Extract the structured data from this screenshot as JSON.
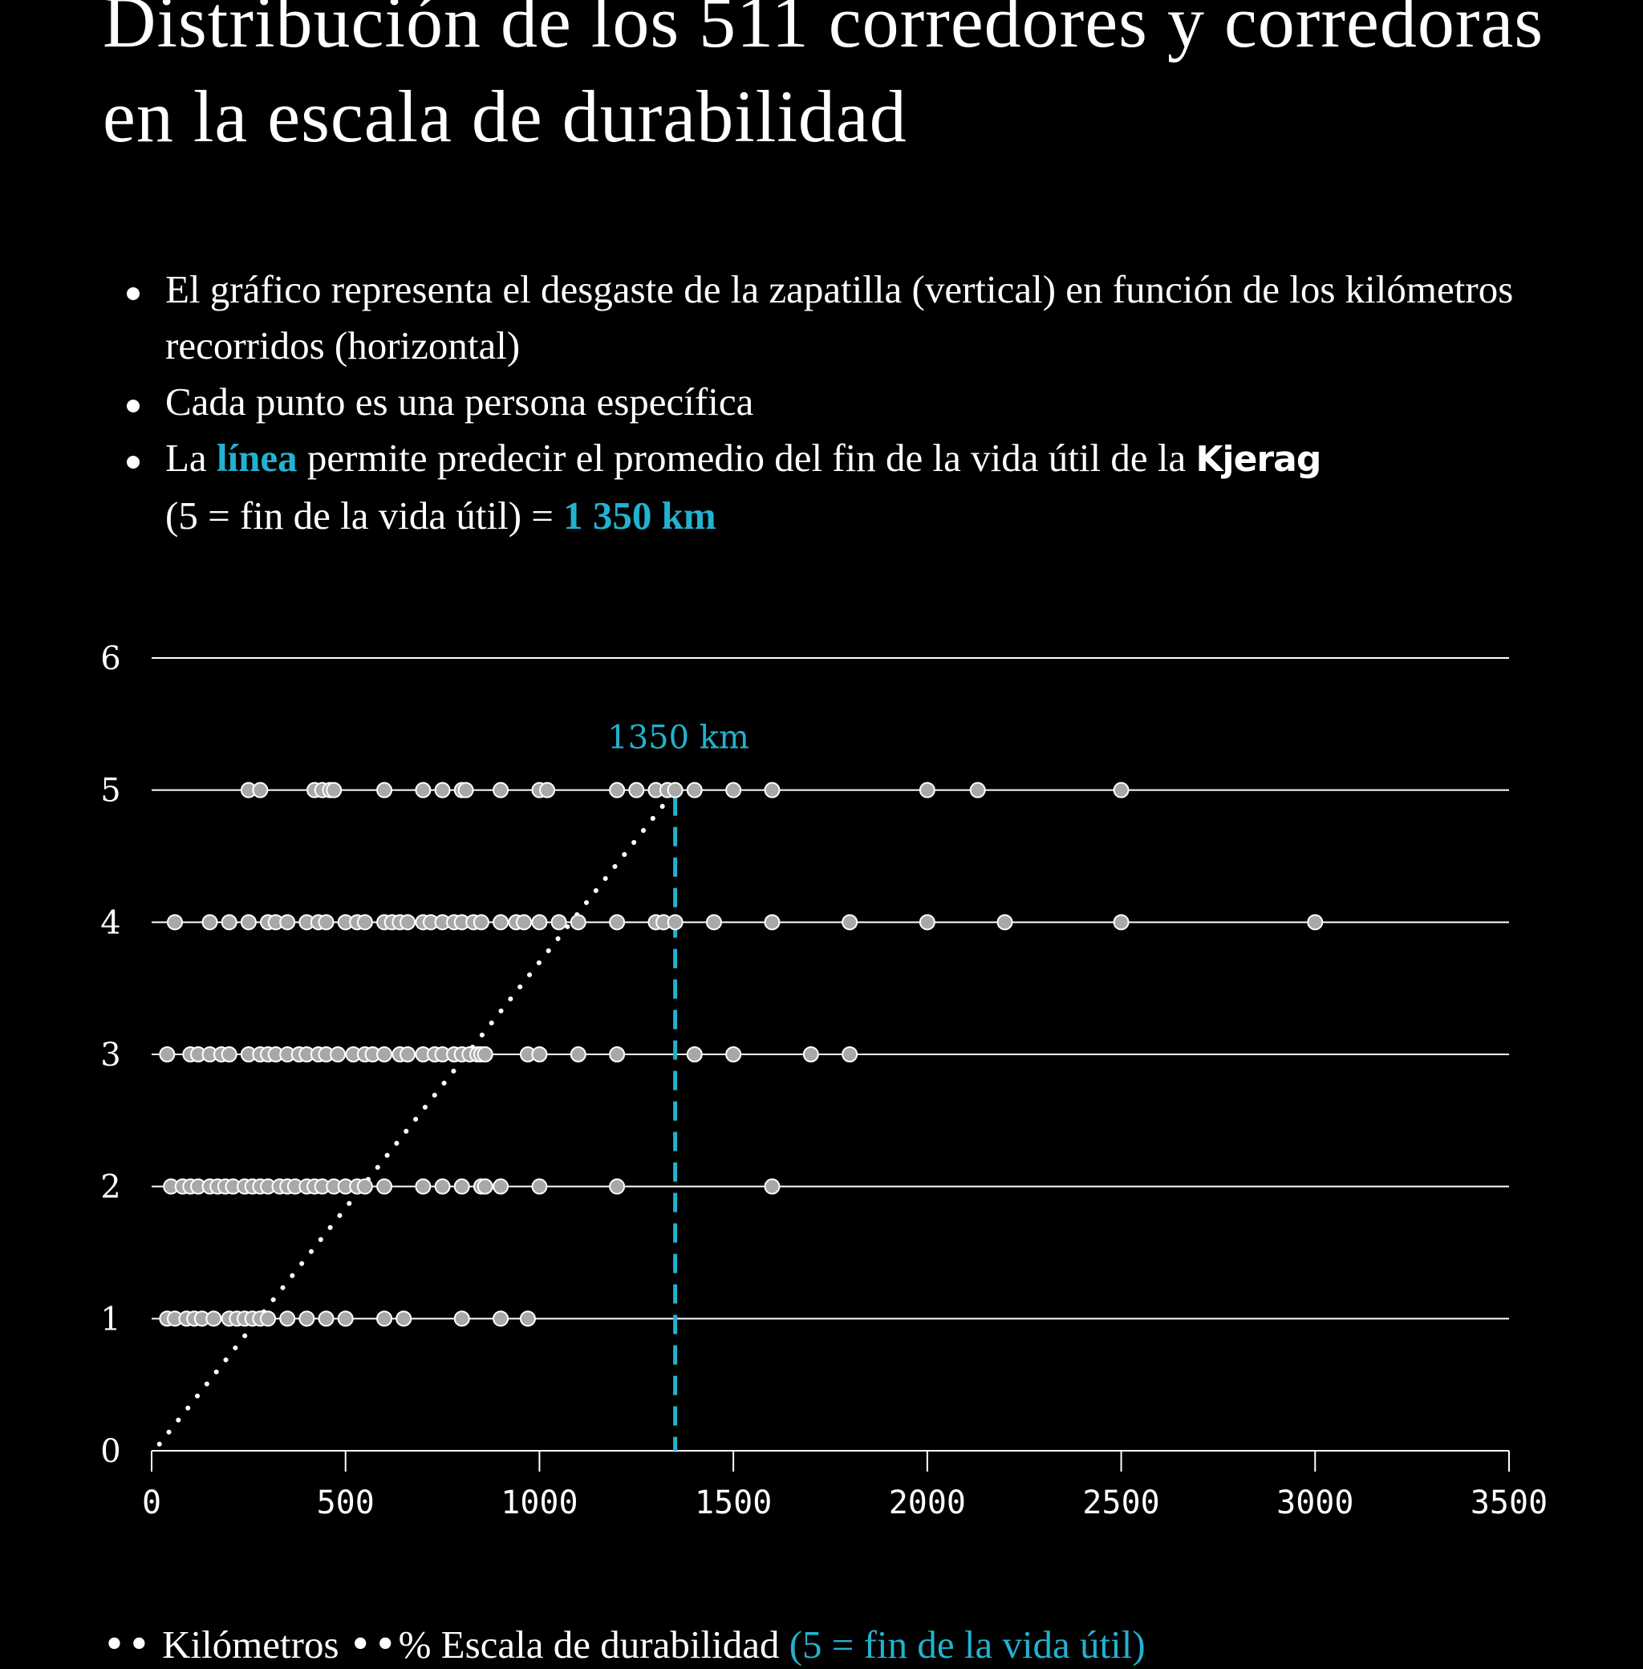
{
  "header": {
    "title": "Distribución de los 511 corredores y corredoras en la escala de durabilidad"
  },
  "bullets": {
    "b1": "El gráfico representa el desgaste de la zapatilla (vertical) en función de los kilómetros recorridos (horizontal)",
    "b2": "Cada punto es una persona específica",
    "b3_pre": "La",
    "b3_highlight": "línea",
    "b3_mid": "permite predecir el promedio del fin de la vida útil de la",
    "b3_brand": "Kjerag",
    "b3_post": "(5 = fin de la vida útil) =",
    "b3_value": "1 350 km"
  },
  "legend": {
    "dots": "••",
    "text": "Kilómetros",
    "dots2": "••",
    "rest": "% Escala de durabilidad",
    "accent": "(5 = fin de la vida útil)"
  },
  "colors": {
    "background": "#000000",
    "foreground": "#ffffff",
    "accent": "#22b2cf",
    "point": "#a8a8a8"
  },
  "chart_data": {
    "type": "scatter",
    "title": "Distribución de los 511 corredores y corredoras en la escala de durabilidad",
    "xlabel": "Kilómetros",
    "ylabel": "Escala de durabilidad",
    "xlim": [
      0,
      3500
    ],
    "ylim": [
      0,
      6
    ],
    "x_ticks": [
      0,
      500,
      1000,
      1500,
      2000,
      2500,
      3000,
      3500
    ],
    "y_ticks": [
      0,
      1,
      2,
      3,
      4,
      5,
      6
    ],
    "grid": "horizontal",
    "trend_line": {
      "from": [
        20,
        0.05
      ],
      "to": [
        1350,
        5
      ],
      "style": "dotted"
    },
    "vline": {
      "x": 1350,
      "label": "1350 km",
      "style": "dashed"
    },
    "points": [
      {
        "y": 1,
        "x": [
          40,
          60,
          90,
          110,
          130,
          160,
          200,
          220,
          240,
          260,
          280,
          300,
          350,
          400,
          450,
          500,
          600,
          650,
          800,
          900,
          970
        ]
      },
      {
        "y": 2,
        "x": [
          50,
          80,
          100,
          120,
          150,
          170,
          190,
          210,
          240,
          260,
          280,
          300,
          330,
          350,
          370,
          400,
          420,
          440,
          470,
          500,
          530,
          550,
          600,
          700,
          750,
          800,
          850,
          860,
          900,
          1000,
          1200,
          1600
        ]
      },
      {
        "y": 3,
        "x": [
          40,
          100,
          120,
          150,
          180,
          200,
          250,
          280,
          300,
          320,
          350,
          380,
          400,
          430,
          450,
          480,
          520,
          550,
          570,
          600,
          640,
          660,
          700,
          730,
          750,
          780,
          800,
          820,
          840,
          850,
          860,
          970,
          1000,
          1100,
          1200,
          1400,
          1500,
          1700,
          1800
        ]
      },
      {
        "y": 4,
        "x": [
          60,
          150,
          200,
          250,
          300,
          320,
          350,
          400,
          430,
          450,
          500,
          530,
          550,
          600,
          620,
          640,
          660,
          700,
          720,
          750,
          780,
          800,
          830,
          850,
          900,
          940,
          960,
          1000,
          1050,
          1100,
          1200,
          1300,
          1320,
          1350,
          1450,
          1600,
          1800,
          2000,
          2200,
          2500,
          3000
        ]
      },
      {
        "y": 5,
        "x": [
          250,
          280,
          420,
          440,
          460,
          470,
          600,
          700,
          750,
          800,
          810,
          900,
          1000,
          1020,
          1200,
          1250,
          1300,
          1330,
          1350,
          1400,
          1500,
          1600,
          2000,
          2130,
          2500
        ]
      }
    ]
  }
}
